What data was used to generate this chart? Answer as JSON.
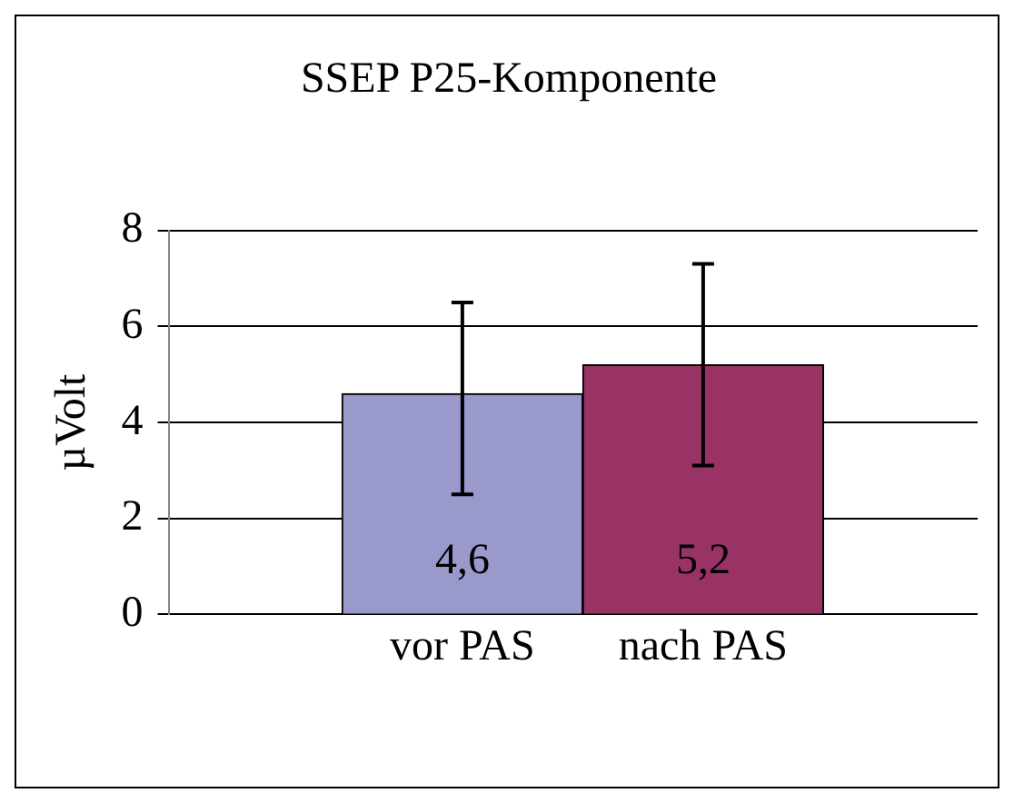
{
  "chart_data": {
    "type": "bar",
    "title": "SSEP P25-Komponente",
    "ylabel": "µVolt",
    "categories": [
      "vor PAS",
      "nach PAS"
    ],
    "values": [
      4.6,
      5.2
    ],
    "colors": [
      "#9999cc",
      "#993366"
    ],
    "errors": [
      [
        2.5,
        6.5
      ],
      2.1
    ],
    "value_labels": [
      "4,6",
      "5,2"
    ],
    "ylim": [
      0,
      8
    ],
    "yticks": [
      0,
      2,
      4,
      6,
      8
    ],
    "grid": "y",
    "legend": false
  }
}
